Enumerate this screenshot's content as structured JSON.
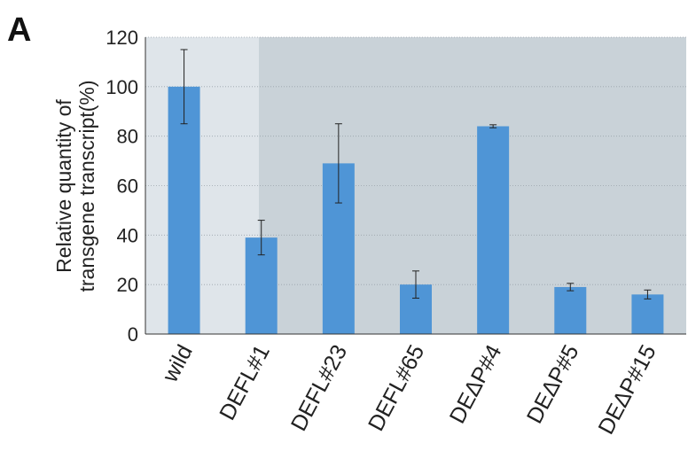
{
  "panel_label": "A",
  "colors": {
    "bar": "#4f95d6",
    "plot_bg_left": "#dfe5ea",
    "plot_bg_right": "#c9d2d8"
  },
  "chart_data": {
    "type": "bar",
    "ylabel_line1": "Relative quantity of",
    "ylabel_line2": "transgene transcript(%)",
    "xlabel": "",
    "ylim": [
      0,
      120
    ],
    "yticks": [
      0,
      20,
      40,
      60,
      80,
      100,
      120
    ],
    "ytick_labels": [
      "0",
      "20",
      "40",
      "60",
      "80",
      "100",
      "120"
    ],
    "grid": true,
    "categories": [
      "wild",
      "DEFL#1",
      "DEFL#23",
      "DEFL#65",
      "DEΔP#4",
      "DEΔP#5",
      "DEΔP#15"
    ],
    "values": [
      100,
      39,
      69,
      20,
      84,
      19,
      16
    ],
    "errors": [
      15,
      7,
      16,
      5.5,
      0.6,
      1.5,
      1.8
    ]
  }
}
